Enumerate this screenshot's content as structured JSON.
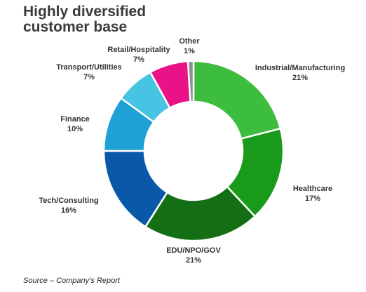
{
  "title_line1": "Highly diversified",
  "title_line2": "customer base",
  "source": "Source – Company’s Report",
  "chart_data": {
    "type": "pie",
    "donut": true,
    "legend": "none",
    "categories": [
      "Industrial/Manufacturing",
      "Healthcare",
      "EDU/NPO/GOV",
      "Tech/Consulting",
      "Finance",
      "Transport/Utilities",
      "Retail/Hospitality",
      "Other"
    ],
    "values": [
      21,
      17,
      21,
      16,
      10,
      7,
      7,
      1
    ],
    "value_labels": [
      "21%",
      "17%",
      "21%",
      "16%",
      "10%",
      "7%",
      "7%",
      "1%"
    ],
    "colors": [
      "#3dbd3d",
      "#1a9a1a",
      "#146e14",
      "#0a59a8",
      "#1ea2d6",
      "#47c4e4",
      "#ea1287",
      "#8f8f8f"
    ]
  }
}
